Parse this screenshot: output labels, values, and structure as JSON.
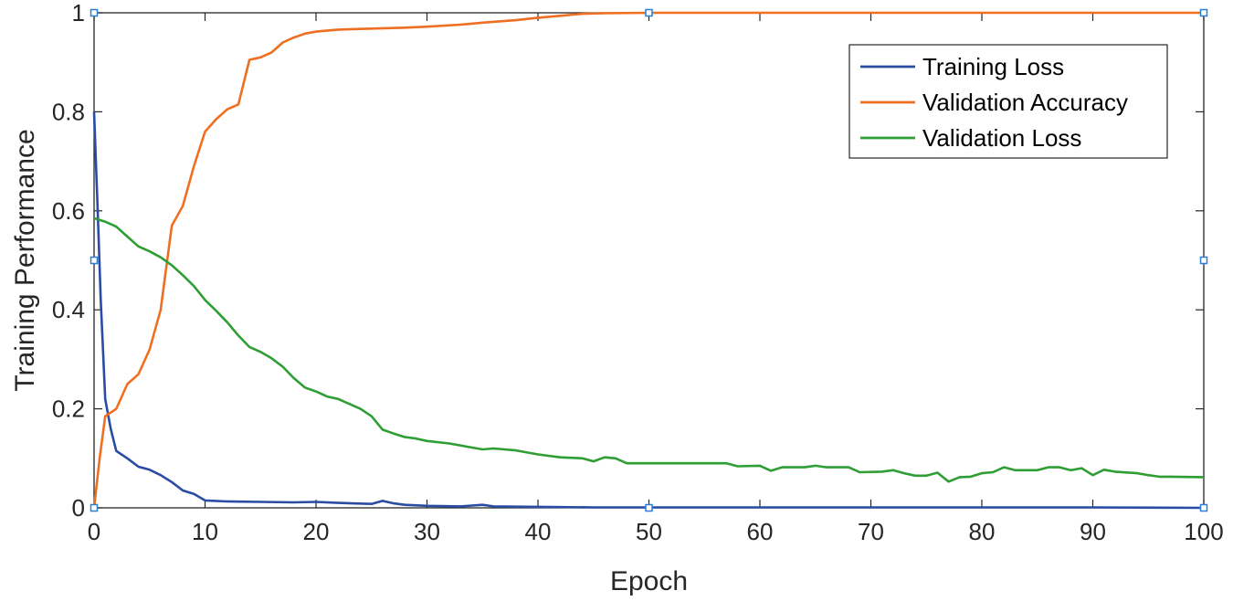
{
  "chart_data": {
    "type": "line",
    "xlabel": "Epoch",
    "ylabel": "Training Performance",
    "xlim": [
      0,
      100
    ],
    "ylim": [
      0,
      1
    ],
    "x_ticks": [
      0,
      10,
      20,
      30,
      40,
      50,
      60,
      70,
      80,
      90,
      100
    ],
    "y_ticks": [
      0,
      0.2,
      0.4,
      0.6,
      0.8,
      1
    ],
    "x_tick_labels": [
      "0",
      "10",
      "20",
      "30",
      "40",
      "50",
      "60",
      "70",
      "80",
      "90",
      "100"
    ],
    "y_tick_labels": [
      "0",
      "0.2",
      "0.4",
      "0.6",
      "0.8",
      "1"
    ],
    "grid": false,
    "legend_position": "top-right",
    "series": [
      {
        "name": "Training Loss",
        "color": "#2a4da3",
        "points": [
          [
            0,
            0.8
          ],
          [
            0.3,
            0.62
          ],
          [
            0.6,
            0.42
          ],
          [
            1,
            0.22
          ],
          [
            1.5,
            0.16
          ],
          [
            2,
            0.115
          ],
          [
            3,
            0.1
          ],
          [
            4,
            0.083
          ],
          [
            5,
            0.077
          ],
          [
            6,
            0.066
          ],
          [
            7,
            0.052
          ],
          [
            8,
            0.035
          ],
          [
            9,
            0.028
          ],
          [
            10,
            0.015
          ],
          [
            12,
            0.013
          ],
          [
            15,
            0.012
          ],
          [
            18,
            0.011
          ],
          [
            20,
            0.012
          ],
          [
            22,
            0.01
          ],
          [
            25,
            0.008
          ],
          [
            26,
            0.014
          ],
          [
            27,
            0.009
          ],
          [
            28,
            0.006
          ],
          [
            30,
            0.004
          ],
          [
            33,
            0.003
          ],
          [
            35,
            0.006
          ],
          [
            36,
            0.003
          ],
          [
            40,
            0.002
          ],
          [
            45,
            0.001
          ],
          [
            50,
            0.001
          ],
          [
            60,
            0.001
          ],
          [
            70,
            0.001
          ],
          [
            80,
            0.001
          ],
          [
            90,
            0.001
          ],
          [
            100,
            0.0
          ]
        ]
      },
      {
        "name": "Validation Accuracy",
        "color": "#ef6f22",
        "points": [
          [
            0,
            0.0
          ],
          [
            0.5,
            0.1
          ],
          [
            1,
            0.185
          ],
          [
            2,
            0.2
          ],
          [
            3,
            0.25
          ],
          [
            4,
            0.27
          ],
          [
            5,
            0.32
          ],
          [
            6,
            0.4
          ],
          [
            7,
            0.57
          ],
          [
            8,
            0.61
          ],
          [
            9,
            0.69
          ],
          [
            10,
            0.76
          ],
          [
            11,
            0.785
          ],
          [
            12,
            0.805
          ],
          [
            13,
            0.815
          ],
          [
            14,
            0.905
          ],
          [
            15,
            0.91
          ],
          [
            16,
            0.92
          ],
          [
            17,
            0.94
          ],
          [
            18,
            0.95
          ],
          [
            19,
            0.958
          ],
          [
            20,
            0.962
          ],
          [
            22,
            0.966
          ],
          [
            25,
            0.968
          ],
          [
            28,
            0.97
          ],
          [
            30,
            0.972
          ],
          [
            33,
            0.976
          ],
          [
            35,
            0.98
          ],
          [
            38,
            0.985
          ],
          [
            40,
            0.99
          ],
          [
            42,
            0.994
          ],
          [
            44,
            0.998
          ],
          [
            46,
            0.999
          ],
          [
            50,
            1.0
          ],
          [
            60,
            1.0
          ],
          [
            70,
            1.0
          ],
          [
            80,
            1.0
          ],
          [
            90,
            1.0
          ],
          [
            100,
            1.0
          ]
        ]
      },
      {
        "name": "Validation Loss",
        "color": "#2e9e35",
        "points": [
          [
            0,
            0.585
          ],
          [
            1,
            0.578
          ],
          [
            2,
            0.568
          ],
          [
            3,
            0.548
          ],
          [
            4,
            0.528
          ],
          [
            5,
            0.518
          ],
          [
            6,
            0.506
          ],
          [
            7,
            0.49
          ],
          [
            8,
            0.47
          ],
          [
            9,
            0.448
          ],
          [
            10,
            0.42
          ],
          [
            11,
            0.398
          ],
          [
            12,
            0.375
          ],
          [
            13,
            0.348
          ],
          [
            14,
            0.325
          ],
          [
            15,
            0.315
          ],
          [
            16,
            0.302
          ],
          [
            17,
            0.285
          ],
          [
            18,
            0.262
          ],
          [
            19,
            0.243
          ],
          [
            20,
            0.235
          ],
          [
            21,
            0.225
          ],
          [
            22,
            0.22
          ],
          [
            23,
            0.21
          ],
          [
            24,
            0.2
          ],
          [
            25,
            0.185
          ],
          [
            26,
            0.158
          ],
          [
            27,
            0.15
          ],
          [
            28,
            0.143
          ],
          [
            29,
            0.14
          ],
          [
            30,
            0.135
          ],
          [
            32,
            0.13
          ],
          [
            34,
            0.122
          ],
          [
            35,
            0.118
          ],
          [
            36,
            0.12
          ],
          [
            38,
            0.116
          ],
          [
            40,
            0.108
          ],
          [
            42,
            0.102
          ],
          [
            44,
            0.1
          ],
          [
            45,
            0.094
          ],
          [
            46,
            0.102
          ],
          [
            47,
            0.1
          ],
          [
            48,
            0.09
          ],
          [
            50,
            0.09
          ],
          [
            52,
            0.09
          ],
          [
            55,
            0.09
          ],
          [
            57,
            0.09
          ],
          [
            58,
            0.084
          ],
          [
            60,
            0.085
          ],
          [
            61,
            0.075
          ],
          [
            62,
            0.082
          ],
          [
            64,
            0.082
          ],
          [
            65,
            0.085
          ],
          [
            66,
            0.082
          ],
          [
            68,
            0.082
          ],
          [
            69,
            0.072
          ],
          [
            71,
            0.073
          ],
          [
            72,
            0.076
          ],
          [
            73,
            0.07
          ],
          [
            74,
            0.065
          ],
          [
            75,
            0.065
          ],
          [
            76,
            0.071
          ],
          [
            77,
            0.053
          ],
          [
            78,
            0.062
          ],
          [
            79,
            0.063
          ],
          [
            80,
            0.07
          ],
          [
            81,
            0.072
          ],
          [
            82,
            0.082
          ],
          [
            83,
            0.076
          ],
          [
            85,
            0.076
          ],
          [
            86,
            0.082
          ],
          [
            87,
            0.082
          ],
          [
            88,
            0.076
          ],
          [
            89,
            0.08
          ],
          [
            90,
            0.066
          ],
          [
            91,
            0.077
          ],
          [
            92,
            0.073
          ],
          [
            94,
            0.07
          ],
          [
            95,
            0.066
          ],
          [
            96,
            0.063
          ],
          [
            97,
            0.063
          ],
          [
            100,
            0.062
          ]
        ]
      }
    ],
    "axis_markers": [
      {
        "x": 0,
        "y": 1
      },
      {
        "x": 50,
        "y": 1
      },
      {
        "x": 100,
        "y": 1
      },
      {
        "x": 0,
        "y": 0.5
      },
      {
        "x": 100,
        "y": 0.5
      },
      {
        "x": 0,
        "y": 0
      },
      {
        "x": 50,
        "y": 0
      },
      {
        "x": 100,
        "y": 0
      }
    ]
  },
  "colors": {
    "axis": "#262626",
    "marker": "#2a7fd4"
  }
}
